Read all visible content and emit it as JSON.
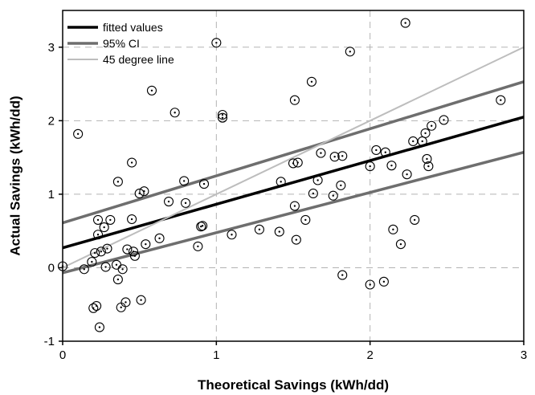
{
  "chart_data": {
    "type": "scatter",
    "xlabel": "Theoretical Savings (kWh/dd)",
    "ylabel": "Actual Savings (kWh/dd)",
    "xlim": [
      0,
      3
    ],
    "ylim": [
      -1,
      3.5
    ],
    "x_ticks": [
      "0",
      "1",
      "2",
      "3"
    ],
    "y_ticks": [
      "-1",
      "0",
      "1",
      "2",
      "3"
    ],
    "grid": "dashed, at major ticks",
    "legend_position": "top-left",
    "points": [
      [
        0.0,
        0.02
      ],
      [
        0.1,
        1.82
      ],
      [
        0.14,
        -0.02
      ],
      [
        0.19,
        0.08
      ],
      [
        0.2,
        -0.55
      ],
      [
        0.21,
        0.2
      ],
      [
        0.22,
        -0.52
      ],
      [
        0.23,
        0.45
      ],
      [
        0.23,
        0.65
      ],
      [
        0.24,
        -0.81
      ],
      [
        0.25,
        0.22
      ],
      [
        0.27,
        0.55
      ],
      [
        0.28,
        0.01
      ],
      [
        0.29,
        0.26
      ],
      [
        0.31,
        0.65
      ],
      [
        0.35,
        0.04
      ],
      [
        0.36,
        -0.16
      ],
      [
        0.36,
        1.17
      ],
      [
        0.38,
        -0.54
      ],
      [
        0.39,
        -0.02
      ],
      [
        0.41,
        -0.47
      ],
      [
        0.42,
        0.25
      ],
      [
        0.45,
        1.43
      ],
      [
        0.45,
        0.66
      ],
      [
        0.46,
        0.22
      ],
      [
        0.47,
        0.16
      ],
      [
        0.5,
        1.01
      ],
      [
        0.51,
        -0.44
      ],
      [
        0.53,
        1.04
      ],
      [
        0.54,
        0.32
      ],
      [
        0.58,
        2.41
      ],
      [
        0.63,
        0.4
      ],
      [
        0.69,
        0.9
      ],
      [
        0.73,
        2.11
      ],
      [
        0.79,
        1.18
      ],
      [
        0.8,
        0.88
      ],
      [
        0.88,
        0.29
      ],
      [
        0.9,
        0.56
      ],
      [
        0.91,
        0.57
      ],
      [
        0.92,
        1.14
      ],
      [
        1.0,
        3.06
      ],
      [
        1.04,
        2.08
      ],
      [
        1.04,
        2.04
      ],
      [
        1.1,
        0.45
      ],
      [
        1.28,
        0.52
      ],
      [
        1.41,
        0.49
      ],
      [
        1.42,
        1.17
      ],
      [
        1.5,
        1.42
      ],
      [
        1.51,
        0.84
      ],
      [
        1.51,
        2.28
      ],
      [
        1.52,
        0.38
      ],
      [
        1.53,
        1.43
      ],
      [
        1.58,
        0.65
      ],
      [
        1.62,
        2.53
      ],
      [
        1.63,
        1.01
      ],
      [
        1.66,
        1.19
      ],
      [
        1.68,
        1.56
      ],
      [
        1.76,
        0.98
      ],
      [
        1.77,
        1.51
      ],
      [
        1.81,
        1.12
      ],
      [
        1.82,
        1.52
      ],
      [
        1.82,
        -0.1
      ],
      [
        1.87,
        2.94
      ],
      [
        2.0,
        -0.23
      ],
      [
        2.0,
        1.38
      ],
      [
        2.04,
        1.6
      ],
      [
        2.09,
        -0.19
      ],
      [
        2.1,
        1.57
      ],
      [
        2.14,
        1.39
      ],
      [
        2.15,
        0.52
      ],
      [
        2.2,
        0.32
      ],
      [
        2.23,
        3.33
      ],
      [
        2.24,
        1.27
      ],
      [
        2.28,
        1.72
      ],
      [
        2.29,
        0.65
      ],
      [
        2.34,
        1.72
      ],
      [
        2.36,
        1.83
      ],
      [
        2.37,
        1.48
      ],
      [
        2.38,
        1.38
      ],
      [
        2.4,
        1.93
      ],
      [
        2.48,
        2.01
      ],
      [
        2.85,
        2.28
      ]
    ],
    "series": [
      {
        "name": "fitted values",
        "x": [
          0,
          3
        ],
        "y": [
          0.27,
          2.05
        ],
        "color": "#000000",
        "width": 3.5
      },
      {
        "name": "95% CI",
        "x": [
          0,
          3
        ],
        "y": [
          0.61,
          2.53
        ],
        "color": "#6e6e6e",
        "width": 3.5
      },
      {
        "name": "95% CI",
        "x": [
          0,
          3
        ],
        "y": [
          -0.07,
          1.57
        ],
        "color": "#6e6e6e",
        "width": 3.5
      },
      {
        "name": "45 degree line",
        "x": [
          0,
          3
        ],
        "y": [
          0,
          3
        ],
        "color": "#bdbdbd",
        "width": 2
      }
    ],
    "legend": [
      {
        "label": "fitted values",
        "color": "#000000"
      },
      {
        "label": "95% CI",
        "color": "#6e6e6e"
      },
      {
        "label": "45 degree line",
        "color": "#bdbdbd"
      }
    ]
  }
}
